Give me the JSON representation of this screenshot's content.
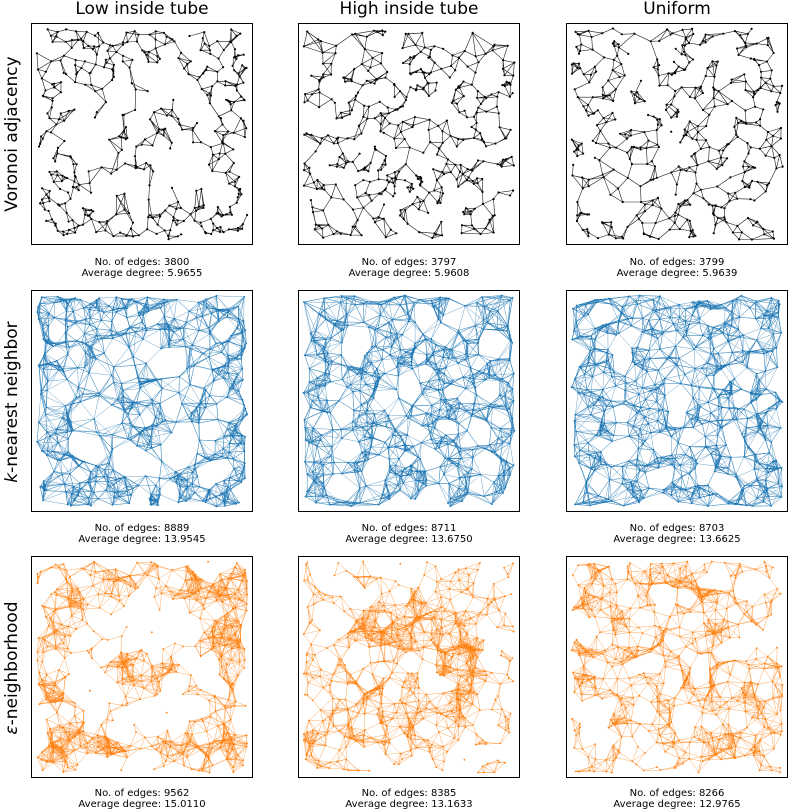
{
  "columns": [
    "Low inside tube",
    "High inside tube",
    "Uniform"
  ],
  "rows": [
    {
      "label": "Voronoi adjacency",
      "color": "#000000",
      "panels": [
        {
          "edges_text": "No. of edges: 3800",
          "degree_text": "Average degree: 5.9655"
        },
        {
          "edges_text": "No. of edges: 3797",
          "degree_text": "Average degree: 5.9608"
        },
        {
          "edges_text": "No. of edges: 3799",
          "degree_text": "Average degree: 5.9639"
        }
      ]
    },
    {
      "label": "k-nearest neighbor",
      "color": "#1f77b4",
      "panels": [
        {
          "edges_text": "No. of edges: 8889",
          "degree_text": "Average degree: 13.9545"
        },
        {
          "edges_text": "No. of edges: 8711",
          "degree_text": "Average degree: 13.6750"
        },
        {
          "edges_text": "No. of edges: 8703",
          "degree_text": "Average degree: 13.6625"
        }
      ]
    },
    {
      "label": "ε-neighborhood",
      "color": "#ff7f0e",
      "panels": [
        {
          "edges_text": "No. of edges: 9562",
          "degree_text": "Average degree: 15.0110"
        },
        {
          "edges_text": "No. of edges: 8385",
          "degree_text": "Average degree: 13.1633"
        },
        {
          "edges_text": "No. of edges: 8266",
          "degree_text": "Average degree: 12.9765"
        }
      ]
    }
  ]
}
